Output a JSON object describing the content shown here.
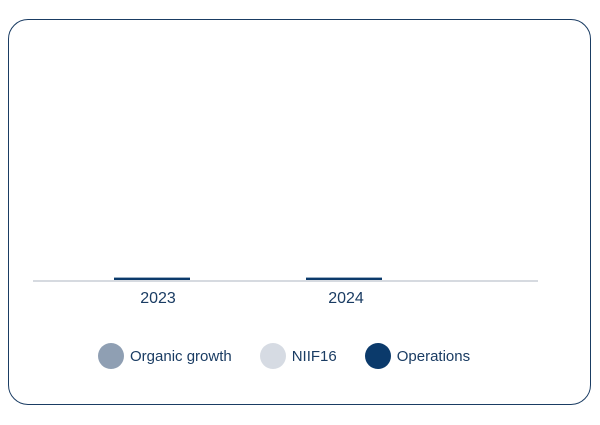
{
  "chart_data": {
    "type": "bar",
    "stacked": true,
    "categories": [
      "2023",
      "2024"
    ],
    "series": [
      {
        "name": "Organic growth",
        "color": "#8f9fb3",
        "values": [
          0,
          0
        ]
      },
      {
        "name": "NIIF16",
        "color": "#d6dbe3",
        "values": [
          0,
          0
        ]
      },
      {
        "name": "Operations",
        "color": "#0b3a6b",
        "values": [
          0.1,
          0.1
        ]
      }
    ],
    "ylim": [
      0,
      10
    ],
    "grid": false,
    "legend_position": "bottom"
  }
}
